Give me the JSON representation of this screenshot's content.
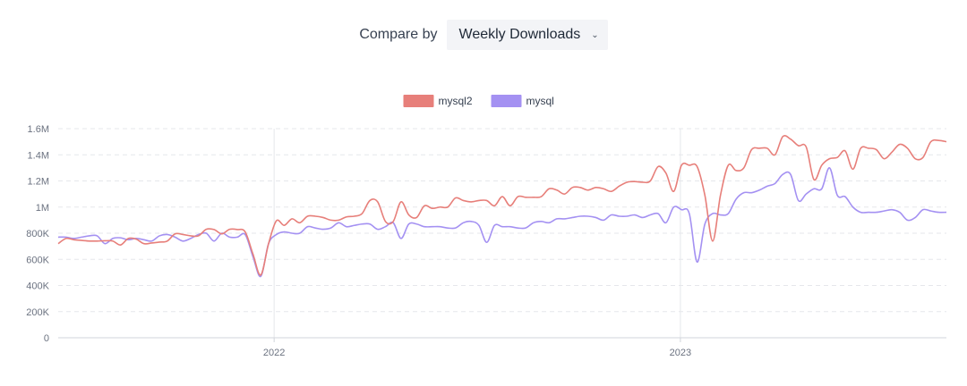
{
  "controls": {
    "compare_label": "Compare by",
    "compare_value": "Weekly Downloads",
    "chevron": "⌄"
  },
  "chart_data": {
    "type": "line",
    "title": "",
    "xlabel": "",
    "ylabel": "",
    "ylim": [
      0,
      1600000
    ],
    "grid": true,
    "legend_position": "top",
    "y_ticks": [
      0,
      200000,
      400000,
      600000,
      800000,
      1000000,
      1200000,
      1400000,
      1600000
    ],
    "y_tick_labels": [
      "0",
      "200K",
      "400K",
      "600K",
      "800K",
      "1M",
      "1.2M",
      "1.4M",
      "1.6M"
    ],
    "x_start": "2021-06-21",
    "x_interval_days": 7,
    "x_ticks": [
      {
        "date": "2022-01-01",
        "label": "2022"
      },
      {
        "date": "2023-01-01",
        "label": "2023"
      }
    ],
    "series": [
      {
        "name": "mysql2",
        "color": "#e77f7a",
        "values": [
          720000,
          760000,
          750000,
          745000,
          740000,
          740000,
          742000,
          740000,
          710000,
          760000,
          755000,
          720000,
          725000,
          732000,
          740000,
          795000,
          790000,
          780000,
          780000,
          830000,
          828000,
          795000,
          830000,
          828000,
          810000,
          640000,
          480000,
          720000,
          895000,
          860000,
          910000,
          880000,
          930000,
          930000,
          920000,
          900000,
          900000,
          925000,
          930000,
          950000,
          1050000,
          1040000,
          890000,
          890000,
          1040000,
          940000,
          920000,
          1010000,
          990000,
          1000000,
          1000000,
          1070000,
          1050000,
          1040000,
          1050000,
          1050000,
          1010000,
          1080000,
          1010000,
          1080000,
          1075000,
          1075000,
          1080000,
          1140000,
          1130000,
          1100000,
          1150000,
          1150000,
          1130000,
          1150000,
          1140000,
          1120000,
          1160000,
          1190000,
          1195000,
          1190000,
          1200000,
          1310000,
          1260000,
          1120000,
          1320000,
          1320000,
          1310000,
          1090000,
          740000,
          1090000,
          1320000,
          1280000,
          1300000,
          1440000,
          1450000,
          1450000,
          1400000,
          1540000,
          1520000,
          1470000,
          1460000,
          1210000,
          1320000,
          1370000,
          1380000,
          1430000,
          1290000,
          1450000,
          1450000,
          1440000,
          1370000,
          1420000,
          1480000,
          1450000,
          1370000,
          1380000,
          1500000,
          1510000,
          1500000
        ],
        "legend_label": "mysql2"
      },
      {
        "name": "mysql",
        "color": "#a491f2",
        "values": [
          770000,
          770000,
          760000,
          770000,
          780000,
          780000,
          720000,
          760000,
          765000,
          750000,
          760000,
          750000,
          740000,
          780000,
          790000,
          770000,
          740000,
          760000,
          790000,
          800000,
          740000,
          800000,
          770000,
          770000,
          790000,
          620000,
          470000,
          720000,
          790000,
          810000,
          800000,
          800000,
          850000,
          840000,
          830000,
          840000,
          880000,
          850000,
          860000,
          870000,
          870000,
          830000,
          850000,
          880000,
          760000,
          870000,
          870000,
          850000,
          850000,
          850000,
          840000,
          840000,
          880000,
          890000,
          860000,
          730000,
          860000,
          850000,
          850000,
          840000,
          840000,
          880000,
          890000,
          880000,
          910000,
          910000,
          920000,
          930000,
          930000,
          920000,
          900000,
          940000,
          930000,
          930000,
          940000,
          920000,
          940000,
          950000,
          880000,
          1000000,
          980000,
          950000,
          580000,
          870000,
          950000,
          940000,
          950000,
          1060000,
          1110000,
          1110000,
          1130000,
          1160000,
          1180000,
          1250000,
          1250000,
          1050000,
          1100000,
          1140000,
          1140000,
          1300000,
          1090000,
          1080000,
          1000000,
          960000,
          960000,
          960000,
          970000,
          980000,
          960000,
          900000,
          920000,
          980000,
          970000,
          960000,
          960000
        ],
        "legend_label": "mysql"
      }
    ]
  }
}
